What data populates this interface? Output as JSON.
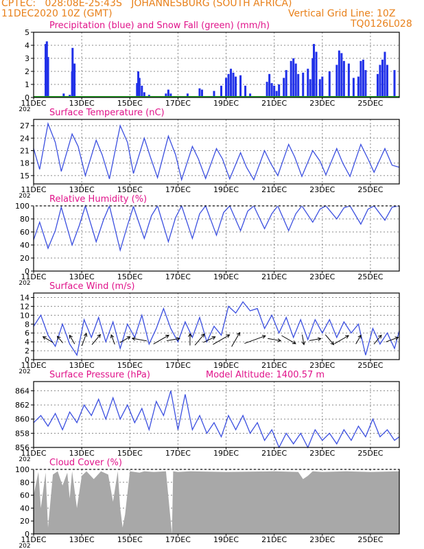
{
  "header": {
    "line1_left": "CPTEC:   028:08E-25:43S   JOHANNESBURG (SOUTH AFRICA)",
    "line2_left": "11DEC2020 10Z (GMT)",
    "line2_right": "Vertical Grid Line: 10Z",
    "code": "TQ0126L028"
  },
  "x_axis": {
    "start_label": "11DEC",
    "ticks": [
      "11DEC",
      "13DEC",
      "15DEC",
      "17DEC",
      "19DEC",
      "21DEC",
      "23DEC",
      "25DEC"
    ],
    "tick_days": [
      11,
      13,
      15,
      17,
      19,
      21,
      23,
      25
    ],
    "xlim": [
      11,
      26.2
    ],
    "year_fragment": "202"
  },
  "colors": {
    "title": "#e0138a",
    "header": "#e8801a",
    "line": "#3b4fe0",
    "precip": "#2030e8",
    "snow": "#20a020",
    "cloud": "#a8a8a8",
    "wind_arrow": "#000000"
  },
  "chart_data": [
    {
      "type": "bar",
      "title": "Precipitation (blue) and Snow Fall (green) (mm/h)",
      "ylim": [
        0,
        5
      ],
      "yticks": [
        "0",
        "1",
        "2",
        "3",
        "4",
        "5"
      ],
      "grid": true,
      "x_day": [
        11.5,
        11.55,
        11.6,
        12.25,
        12.5,
        12.6,
        12.62,
        12.7,
        13.0,
        14.2,
        15.3,
        15.35,
        15.4,
        15.5,
        15.6,
        15.8,
        16.5,
        16.6,
        16.7,
        17.2,
        17.4,
        17.9,
        18.0,
        18.5,
        18.8,
        19.0,
        19.1,
        19.2,
        19.3,
        19.4,
        19.6,
        19.8,
        20.0,
        20.7,
        20.8,
        20.9,
        21.0,
        21.1,
        21.2,
        21.4,
        21.5,
        21.7,
        21.8,
        21.9,
        22.0,
        22.2,
        22.4,
        22.5,
        22.6,
        22.65,
        22.75,
        22.9,
        23.0,
        23.3,
        23.6,
        23.7,
        23.8,
        23.9,
        24.1,
        24.3,
        24.5,
        24.6,
        24.7,
        24.8,
        25.3,
        25.4,
        25.5,
        25.6,
        25.7,
        26.0
      ],
      "values": [
        4.1,
        4.3,
        3.1,
        0.3,
        0.2,
        2.0,
        3.8,
        2.6,
        0.1,
        0.1,
        1.1,
        2.0,
        1.5,
        0.9,
        0.4,
        0.2,
        0.3,
        0.6,
        0.3,
        0.1,
        0.3,
        0.7,
        0.6,
        0.5,
        0.9,
        1.5,
        1.8,
        2.2,
        1.9,
        1.6,
        1.7,
        0.9,
        0.3,
        1.2,
        1.8,
        1.1,
        0.9,
        0.5,
        1.0,
        1.5,
        2.1,
        2.8,
        3.0,
        2.6,
        1.8,
        1.9,
        2.2,
        1.4,
        3.0,
        4.1,
        3.5,
        1.4,
        1.6,
        2.0,
        2.5,
        3.6,
        3.4,
        2.8,
        2.6,
        1.5,
        1.6,
        2.8,
        2.9,
        2.1,
        1.8,
        2.5,
        2.9,
        3.5,
        2.5,
        2.1
      ],
      "snow_values": [
        0,
        0,
        0,
        0,
        0,
        0,
        0,
        0,
        0,
        0,
        0,
        0,
        0,
        0,
        0,
        0,
        0,
        0,
        0,
        0,
        0,
        0,
        0,
        0,
        0,
        0,
        0,
        0,
        0,
        0,
        0,
        0,
        0,
        0,
        0,
        0,
        0,
        0,
        0,
        0,
        0,
        0,
        0,
        0,
        0,
        0,
        0,
        0,
        0,
        0,
        0,
        0,
        0,
        0,
        0,
        0,
        0,
        0,
        0,
        0,
        0,
        0,
        0,
        0,
        0,
        0,
        0,
        0,
        0,
        0
      ]
    },
    {
      "type": "line",
      "title": "Surface Temperature (nC)",
      "ylim": [
        13,
        28.5
      ],
      "yticks": [
        "15",
        "18",
        "21",
        "24",
        "27"
      ],
      "ytick_values": [
        15,
        18,
        21,
        24,
        27
      ],
      "grid": true,
      "x": [
        11.0,
        11.25,
        11.6,
        11.9,
        12.15,
        12.6,
        12.85,
        13.15,
        13.6,
        13.85,
        14.15,
        14.6,
        14.9,
        15.15,
        15.6,
        15.85,
        16.15,
        16.6,
        16.9,
        17.15,
        17.6,
        17.85,
        18.15,
        18.6,
        18.85,
        19.15,
        19.6,
        19.85,
        20.15,
        20.6,
        20.85,
        21.15,
        21.6,
        21.85,
        22.15,
        22.6,
        22.9,
        23.15,
        23.6,
        23.85,
        24.15,
        24.6,
        24.9,
        25.15,
        25.6,
        25.9,
        26.2
      ],
      "y": [
        21.5,
        16.5,
        27.5,
        23.0,
        16.0,
        25.0,
        22.0,
        15.0,
        23.5,
        20.0,
        14.2,
        27.0,
        23.0,
        15.5,
        24.0,
        19.5,
        14.5,
        24.5,
        20.0,
        14.0,
        22.0,
        19.0,
        14.3,
        21.5,
        19.0,
        14.2,
        20.5,
        17.0,
        14.0,
        21.0,
        18.0,
        15.0,
        22.5,
        19.5,
        14.8,
        21.0,
        18.5,
        15.2,
        21.5,
        18.0,
        14.8,
        22.5,
        19.0,
        15.8,
        21.5,
        17.5,
        17.0
      ]
    },
    {
      "type": "line",
      "title": "Relative Humidity (%)",
      "ylim": [
        0,
        100
      ],
      "yticks": [
        "0",
        "20",
        "40",
        "60",
        "80",
        "100"
      ],
      "ytick_values": [
        0,
        20,
        40,
        60,
        80,
        100
      ],
      "grid": true,
      "x": [
        11.0,
        11.25,
        11.6,
        11.9,
        12.15,
        12.6,
        12.9,
        13.15,
        13.6,
        13.9,
        14.15,
        14.6,
        14.9,
        15.15,
        15.6,
        15.9,
        16.15,
        16.6,
        16.9,
        17.15,
        17.6,
        17.9,
        18.15,
        18.6,
        18.9,
        19.15,
        19.6,
        19.9,
        20.15,
        20.6,
        20.9,
        21.15,
        21.6,
        21.9,
        22.15,
        22.6,
        22.9,
        23.15,
        23.6,
        23.9,
        24.15,
        24.6,
        24.9,
        25.15,
        25.6,
        25.9,
        26.2
      ],
      "y": [
        48.0,
        75.0,
        35.0,
        62.0,
        98.0,
        40.0,
        70.0,
        100.0,
        45.0,
        78.0,
        100.0,
        32.0,
        70.0,
        99.0,
        50.0,
        85.0,
        100.0,
        45.0,
        82.0,
        100.0,
        50.0,
        88.0,
        100.0,
        55.0,
        90.0,
        100.0,
        62.0,
        92.0,
        100.0,
        65.0,
        88.0,
        100.0,
        62.0,
        88.0,
        100.0,
        75.0,
        95.0,
        100.0,
        80.0,
        97.0,
        100.0,
        72.0,
        95.0,
        100.0,
        78.0,
        98.0,
        100.0
      ]
    },
    {
      "type": "line",
      "title": "Surface Wind (m/s)",
      "ylim": [
        0,
        15
      ],
      "yticks": [
        "0",
        "2",
        "4",
        "6",
        "8",
        "10",
        "12",
        "14"
      ],
      "ytick_values": [
        0,
        2,
        4,
        6,
        8,
        10,
        12,
        14
      ],
      "grid": true,
      "x": [
        11.0,
        11.3,
        11.6,
        11.9,
        12.2,
        12.5,
        12.8,
        13.1,
        13.4,
        13.7,
        14.0,
        14.3,
        14.6,
        14.9,
        15.2,
        15.5,
        15.8,
        16.1,
        16.4,
        16.7,
        17.0,
        17.3,
        17.6,
        17.9,
        18.2,
        18.5,
        18.8,
        19.1,
        19.4,
        19.7,
        20.0,
        20.3,
        20.6,
        20.9,
        21.2,
        21.5,
        21.8,
        22.1,
        22.4,
        22.7,
        23.0,
        23.3,
        23.6,
        23.9,
        24.2,
        24.5,
        24.8,
        25.1,
        25.4,
        25.7,
        26.0,
        26.2
      ],
      "y": [
        7.5,
        10.0,
        5.5,
        3.0,
        8.0,
        3.5,
        1.0,
        9.0,
        5.0,
        9.5,
        4.0,
        8.5,
        2.5,
        8.0,
        5.0,
        10.0,
        3.5,
        7.0,
        11.5,
        7.0,
        4.0,
        8.5,
        5.0,
        9.5,
        4.0,
        7.5,
        5.5,
        12.0,
        10.5,
        13.0,
        11.0,
        11.5,
        7.0,
        10.0,
        6.0,
        9.5,
        5.0,
        9.0,
        4.5,
        9.0,
        6.0,
        9.0,
        5.0,
        8.5,
        6.0,
        8.0,
        1.0,
        7.0,
        3.5,
        6.0,
        2.5,
        6.5
      ],
      "arrows": [
        {
          "day": 11.6,
          "dir_deg": 300,
          "speed": 5
        },
        {
          "day": 12.1,
          "dir_deg": 320,
          "speed": 3
        },
        {
          "day": 12.6,
          "dir_deg": 330,
          "speed": 4
        },
        {
          "day": 13.1,
          "dir_deg": 20,
          "speed": 6
        },
        {
          "day": 13.6,
          "dir_deg": 40,
          "speed": 6
        },
        {
          "day": 14.3,
          "dir_deg": 340,
          "speed": 4
        },
        {
          "day": 14.8,
          "dir_deg": 60,
          "speed": 5
        },
        {
          "day": 15.4,
          "dir_deg": 280,
          "speed": 7
        },
        {
          "day": 16.3,
          "dir_deg": 60,
          "speed": 9
        },
        {
          "day": 16.8,
          "dir_deg": 80,
          "speed": 6
        },
        {
          "day": 17.5,
          "dir_deg": 0,
          "speed": 5
        },
        {
          "day": 17.9,
          "dir_deg": 40,
          "speed": 7
        },
        {
          "day": 18.3,
          "dir_deg": 65,
          "speed": 6
        },
        {
          "day": 18.8,
          "dir_deg": 60,
          "speed": 10
        },
        {
          "day": 19.4,
          "dir_deg": 30,
          "speed": 8
        },
        {
          "day": 20.2,
          "dir_deg": 70,
          "speed": 12
        },
        {
          "day": 21.0,
          "dir_deg": 100,
          "speed": 6
        },
        {
          "day": 21.6,
          "dir_deg": 120,
          "speed": 8
        },
        {
          "day": 22.2,
          "dir_deg": 170,
          "speed": 4
        },
        {
          "day": 22.7,
          "dir_deg": 80,
          "speed": 5
        },
        {
          "day": 23.3,
          "dir_deg": 140,
          "speed": 6
        },
        {
          "day": 23.8,
          "dir_deg": 60,
          "speed": 8
        },
        {
          "day": 24.5,
          "dir_deg": 30,
          "speed": 4
        },
        {
          "day": 25.3,
          "dir_deg": 40,
          "speed": 5
        },
        {
          "day": 25.9,
          "dir_deg": 70,
          "speed": 6
        }
      ]
    },
    {
      "type": "line",
      "title": "Surface Pressure (hPa)",
      "subtitle": "Model Altitude: 1400.57 m",
      "ylim": [
        856,
        865.3
      ],
      "yticks": [
        "856",
        "858",
        "860",
        "862",
        "864"
      ],
      "ytick_values": [
        856,
        858,
        860,
        862,
        864
      ],
      "grid": true,
      "x": [
        11.0,
        11.3,
        11.6,
        11.9,
        12.2,
        12.5,
        12.8,
        13.1,
        13.4,
        13.7,
        14.0,
        14.3,
        14.6,
        14.9,
        15.2,
        15.5,
        15.8,
        16.1,
        16.4,
        16.7,
        17.0,
        17.3,
        17.6,
        17.9,
        18.2,
        18.5,
        18.8,
        19.1,
        19.4,
        19.7,
        20.0,
        20.3,
        20.6,
        20.9,
        21.2,
        21.5,
        21.8,
        22.1,
        22.4,
        22.7,
        23.0,
        23.3,
        23.6,
        23.9,
        24.2,
        24.5,
        24.8,
        25.1,
        25.4,
        25.7,
        26.0,
        26.2
      ],
      "y": [
        859.5,
        860.5,
        859.0,
        860.8,
        858.5,
        861.0,
        859.5,
        862.0,
        860.5,
        862.8,
        860.0,
        863.0,
        860.0,
        862.0,
        859.5,
        861.5,
        858.5,
        862.5,
        860.5,
        864.0,
        858.5,
        863.5,
        858.5,
        860.5,
        858.0,
        859.5,
        857.5,
        860.5,
        858.5,
        860.5,
        858.0,
        859.5,
        857.0,
        858.5,
        856.0,
        858.0,
        856.5,
        858.0,
        856.0,
        858.5,
        857.0,
        858.0,
        856.5,
        858.5,
        857.0,
        859.0,
        857.5,
        860.0,
        857.5,
        858.5,
        857.0,
        857.5
      ]
    },
    {
      "type": "area",
      "title": "Cloud Cover (%)",
      "ylim": [
        0,
        100
      ],
      "yticks": [
        "0",
        "20",
        "40",
        "60",
        "80",
        "100"
      ],
      "ytick_values": [
        0,
        20,
        40,
        60,
        80,
        100
      ],
      "grid": true,
      "x": [
        11.0,
        11.2,
        11.3,
        11.5,
        11.6,
        11.8,
        12.0,
        12.2,
        12.4,
        12.5,
        12.6,
        12.8,
        13.0,
        13.2,
        13.5,
        13.8,
        14.1,
        14.3,
        14.5,
        14.6,
        14.7,
        14.8,
        15.0,
        15.4,
        15.6,
        16.0,
        16.5,
        16.75,
        16.8,
        17.0,
        17.5,
        19.0,
        21.0,
        22.0,
        22.2,
        22.4,
        22.6,
        23.0,
        24.0,
        25.0,
        26.2
      ],
      "y": [
        60,
        96,
        40,
        95,
        10,
        92,
        97,
        75,
        95,
        55,
        97,
        40,
        90,
        97,
        85,
        97,
        92,
        50,
        97,
        40,
        10,
        30,
        97,
        95,
        97,
        96,
        97,
        0,
        97,
        96,
        97,
        96,
        97,
        96,
        85,
        90,
        97,
        96,
        97,
        96,
        97
      ]
    }
  ]
}
